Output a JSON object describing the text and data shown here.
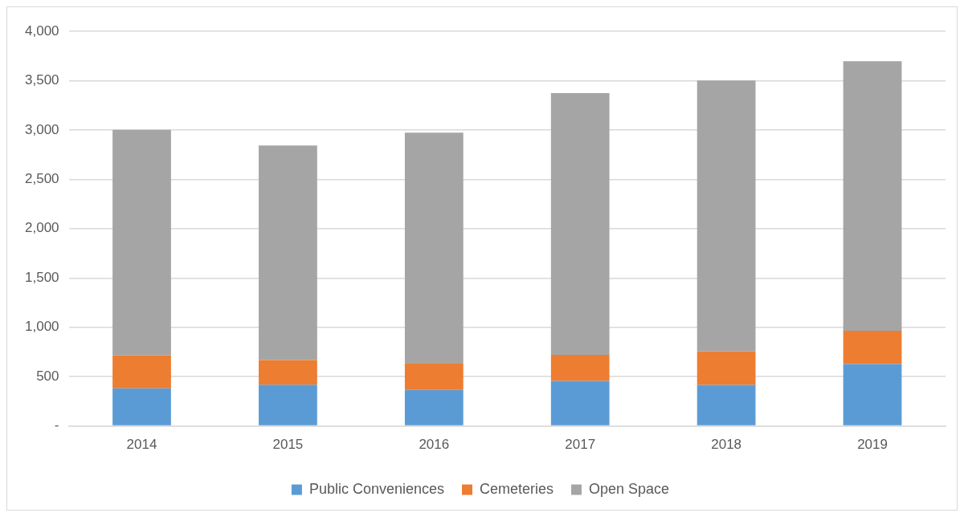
{
  "chart_data": {
    "type": "bar",
    "stacked": true,
    "categories": [
      "2014",
      "2015",
      "2016",
      "2017",
      "2018",
      "2019"
    ],
    "series": [
      {
        "name": "Public Conveniences",
        "color": "#5b9bd5",
        "values": [
          382,
          418,
          365,
          457,
          416,
          627
        ]
      },
      {
        "name": "Cemeteries",
        "color": "#ed7d31",
        "values": [
          335,
          250,
          272,
          263,
          342,
          337
        ]
      },
      {
        "name": "Open Space",
        "color": "#a5a5a5",
        "values": [
          2285,
          2175,
          2335,
          2653,
          2744,
          2732
        ]
      }
    ],
    "ylim": [
      0,
      4000
    ],
    "yticks": [
      {
        "value": 0,
        "label": "-"
      },
      {
        "value": 500,
        "label": "500"
      },
      {
        "value": 1000,
        "label": "1,000"
      },
      {
        "value": 1500,
        "label": "1,500"
      },
      {
        "value": 2000,
        "label": "2,000"
      },
      {
        "value": 2500,
        "label": "2,500"
      },
      {
        "value": 3000,
        "label": "3,000"
      },
      {
        "value": 3500,
        "label": "3,500"
      },
      {
        "value": 4000,
        "label": "4,000"
      }
    ],
    "grid": "y",
    "legend": "bottom"
  }
}
